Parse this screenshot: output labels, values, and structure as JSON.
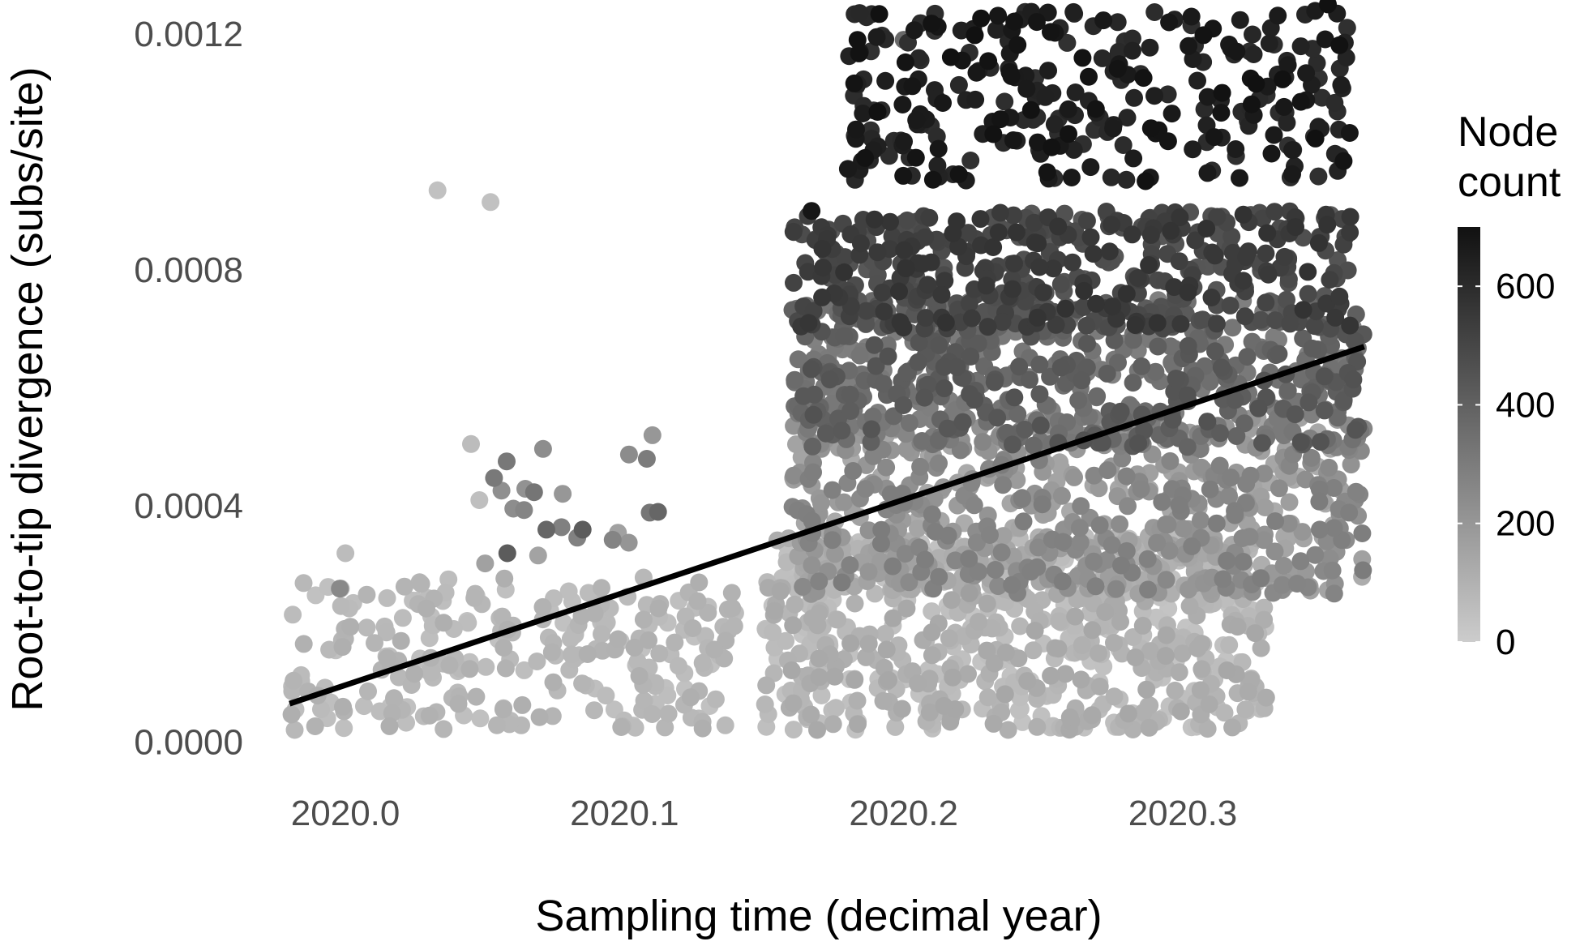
{
  "chart_data": {
    "type": "scatter",
    "title": "",
    "xlabel": "Sampling time (decimal year)",
    "ylabel": "Root-to-tip divergence (subs/site)",
    "xlim": [
      2019.975,
      2020.37
    ],
    "ylim": [
      -2e-05,
      0.00123
    ],
    "x_ticks": [
      "2020.0",
      "2020.1",
      "2020.2",
      "2020.3"
    ],
    "x_tick_values": [
      2020.0,
      2020.1,
      2020.2,
      2020.3
    ],
    "y_ticks": [
      "0.0000",
      "0.0004",
      "0.0008",
      "0.0012"
    ],
    "y_tick_values": [
      0.0,
      0.0004,
      0.0008,
      0.0012
    ],
    "grid": false,
    "legend": {
      "title_lines": [
        "Node",
        "count"
      ],
      "ticks": [
        "0",
        "200",
        "400",
        "600"
      ],
      "tick_values": [
        0,
        200,
        400,
        600
      ],
      "range": [
        0,
        700
      ],
      "placement": "right",
      "color_low": "#cccccc",
      "color_high": "#111111"
    },
    "regression_line": {
      "x": [
        2019.98,
        2020.365
      ],
      "y": [
        6.5e-05,
        0.00067
      ],
      "color": "#000000"
    },
    "point_size_note": "dense point cloud; representative points generated from clusters",
    "clusters": [
      {
        "x_range": [
          2019.98,
          2020.14
        ],
        "y_range": [
          2e-05,
          0.00028
        ],
        "node_count": [
          40,
          110
        ],
        "n": 260
      },
      {
        "x_range": [
          2020.05,
          2020.12
        ],
        "y_range": [
          0.0003,
          0.00052
        ],
        "node_count": [
          150,
          330
        ],
        "n": 18
      },
      {
        "x_range": [
          2020.15,
          2020.33
        ],
        "y_range": [
          2e-05,
          0.00035
        ],
        "node_count": [
          30,
          140
        ],
        "n": 700
      },
      {
        "x_range": [
          2020.16,
          2020.365
        ],
        "y_range": [
          0.00025,
          0.00055
        ],
        "node_count": [
          120,
          300
        ],
        "n": 650
      },
      {
        "x_range": [
          2020.16,
          2020.365
        ],
        "y_range": [
          0.0005,
          0.00075
        ],
        "node_count": [
          280,
          460
        ],
        "n": 600
      },
      {
        "x_range": [
          2020.16,
          2020.36
        ],
        "y_range": [
          0.0007,
          0.0009
        ],
        "node_count": [
          430,
          580
        ],
        "n": 450
      },
      {
        "x_range": [
          2020.18,
          2020.36
        ],
        "y_range": [
          0.00095,
          0.00124
        ],
        "node_count": [
          580,
          700
        ],
        "n": 300
      }
    ],
    "outliers": [
      {
        "x": 2020.033,
        "y": 0.000935,
        "node_count": 40
      },
      {
        "x": 2020.052,
        "y": 0.000915,
        "node_count": 40
      },
      {
        "x": 2020.045,
        "y": 0.000505,
        "node_count": 60
      },
      {
        "x": 2020.048,
        "y": 0.00041,
        "node_count": 50
      },
      {
        "x": 2020.0,
        "y": 0.00032,
        "node_count": 60
      },
      {
        "x": 2019.998,
        "y": 0.00026,
        "node_count": 250
      },
      {
        "x": 2020.11,
        "y": 0.00052,
        "node_count": 200
      },
      {
        "x": 2020.108,
        "y": 0.00048,
        "node_count": 300
      },
      {
        "x": 2020.112,
        "y": 0.00039,
        "node_count": 380
      },
      {
        "x": 2020.085,
        "y": 0.00036,
        "node_count": 420
      },
      {
        "x": 2020.072,
        "y": 0.00036,
        "node_count": 380
      },
      {
        "x": 2020.058,
        "y": 0.00032,
        "node_count": 420
      },
      {
        "x": 2020.167,
        "y": 0.0009,
        "node_count": 680
      },
      {
        "x": 2020.36,
        "y": 0.00089,
        "node_count": 560
      },
      {
        "x": 2020.352,
        "y": 0.00125,
        "node_count": 700
      },
      {
        "x": 2020.2,
        "y": 0.00119,
        "node_count": 370
      }
    ]
  }
}
